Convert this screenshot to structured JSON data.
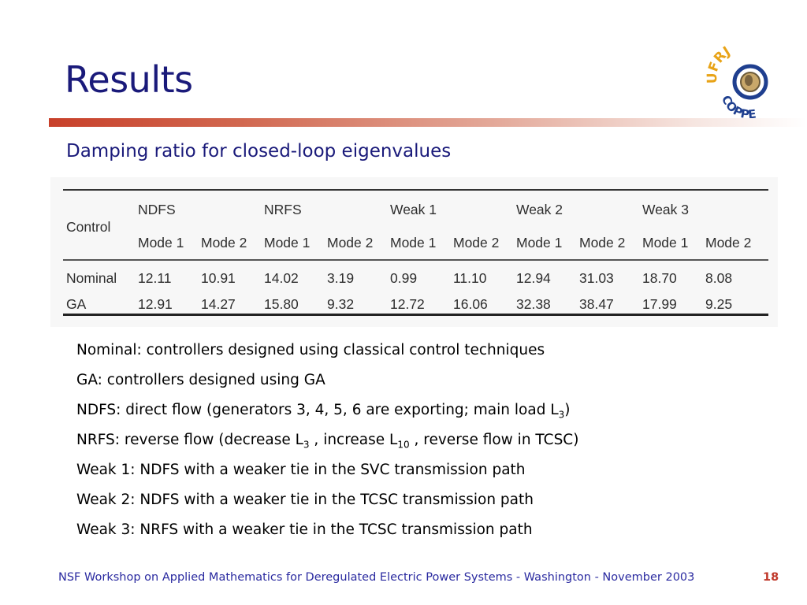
{
  "slide": {
    "title": "Results",
    "subtitle": "Damping ratio for closed-loop eigenvalues",
    "logo": {
      "top_text": "UFRJ",
      "bottom_text": "COPPE",
      "colors": [
        "#e8a317",
        "#1f3f8f"
      ]
    }
  },
  "table": {
    "row_header": "Control",
    "groups": [
      "NDFS",
      "NRFS",
      "Weak 1",
      "Weak 2",
      "Weak 3"
    ],
    "modes": [
      "Mode 1",
      "Mode 2",
      "Mode 1",
      "Mode 2",
      "Mode 1",
      "Mode 2",
      "Mode 1",
      "Mode 2",
      "Mode 1",
      "Mode 2"
    ],
    "rows": [
      {
        "label": "Nominal",
        "values": [
          "12.11",
          "10.91",
          "14.02",
          "3.19",
          "0.99",
          "11.10",
          "12.94",
          "31.03",
          "18.70",
          "8.08"
        ]
      },
      {
        "label": "GA",
        "values": [
          "12.91",
          "14.27",
          "15.80",
          "9.32",
          "12.72",
          "16.06",
          "32.38",
          "38.47",
          "17.99",
          "9.25"
        ]
      }
    ]
  },
  "notes": {
    "nominal": "Nominal: controllers designed using classical control techniques",
    "ga": "GA: controllers designed using GA",
    "ndfs_a": "NDFS: direct flow (generators 3, 4, 5, 6 are exporting; main load L",
    "ndfs_sub": "3",
    "ndfs_b": ")",
    "nrfs_a": "NRFS: reverse flow (decrease L",
    "nrfs_sub1": "3",
    "nrfs_b": " , increase L",
    "nrfs_sub2": "10",
    "nrfs_c": " , reverse flow in TCSC)",
    "weak1": "Weak 1: NDFS with a weaker tie in the SVC transmission path",
    "weak2": "Weak 2: NDFS with a weaker tie in the TCSC transmission path",
    "weak3": "Weak 3: NRFS with a weaker tie in the TCSC transmission path"
  },
  "footer": {
    "text": "NSF Workshop on Applied Mathematics for Deregulated Electric Power Systems - Washington - November 2003",
    "page": "18"
  }
}
